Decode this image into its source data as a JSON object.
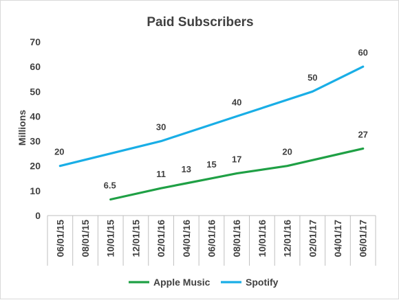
{
  "chart_data": {
    "type": "line",
    "title": "Paid Subscribers",
    "xlabel": "",
    "ylabel": "Millions",
    "ylim": [
      0,
      70
    ],
    "yticks": [
      "0",
      "10",
      "20",
      "30",
      "40",
      "50",
      "60",
      "70"
    ],
    "categories": [
      "06/01/15",
      "08/01/15",
      "10/01/15",
      "12/01/15",
      "02/01/16",
      "04/01/16",
      "06/01/16",
      "08/01/16",
      "10/01/16",
      "12/01/16",
      "02/01/17",
      "04/01/17",
      "06/01/17"
    ],
    "grid": false,
    "legend_position": "bottom",
    "series": [
      {
        "name": "Apple Music",
        "color": "#1fa045",
        "points": [
          {
            "x": "10/01/15",
            "y": 6.5,
            "label": "6.5"
          },
          {
            "x": "02/01/16",
            "y": 11,
            "label": "11"
          },
          {
            "x": "04/01/16",
            "y": 13,
            "label": "13"
          },
          {
            "x": "06/01/16",
            "y": 15,
            "label": "15"
          },
          {
            "x": "08/01/16",
            "y": 17,
            "label": "17"
          },
          {
            "x": "12/01/16",
            "y": 20,
            "label": "20"
          },
          {
            "x": "06/01/17",
            "y": 27,
            "label": "27"
          }
        ]
      },
      {
        "name": "Spotify",
        "color": "#19aee6",
        "points": [
          {
            "x": "06/01/15",
            "y": 20,
            "label": "20"
          },
          {
            "x": "02/01/16",
            "y": 30,
            "label": "30"
          },
          {
            "x": "08/01/16",
            "y": 40,
            "label": "40"
          },
          {
            "x": "02/01/17",
            "y": 50,
            "label": "50"
          },
          {
            "x": "06/01/17",
            "y": 60,
            "label": "60"
          }
        ]
      }
    ]
  }
}
